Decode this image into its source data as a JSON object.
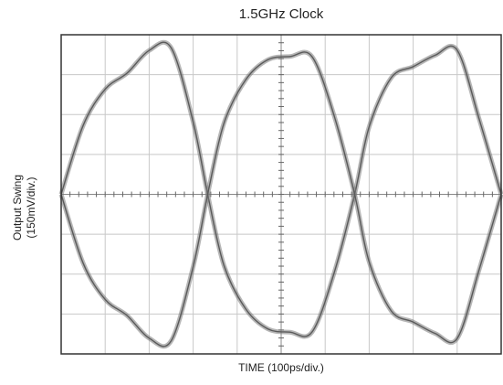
{
  "chart_data": {
    "type": "line",
    "title": "1.5GHz Clock",
    "xlabel": "TIME (100ps/div.)",
    "ylabel_line1": "Output Swing",
    "ylabel_line2": "(150mV/div.)",
    "grid": true,
    "x_divisions": 10,
    "y_divisions": 8,
    "x_unit": "ps",
    "y_unit": "mV",
    "xlim": [
      0,
      1000
    ],
    "ylim": [
      -600,
      600
    ],
    "trace_color": "#7a7a7a",
    "grid_color": "#c8c8c8",
    "series": [
      {
        "x": [
          0,
          50,
          100,
          150,
          200,
          250,
          300,
          333,
          370,
          420,
          470,
          520,
          570,
          620,
          667,
          700,
          750,
          800,
          850,
          900,
          950,
          1000
        ],
        "values": [
          0,
          259,
          395,
          456,
          541,
          551,
          272,
          0,
          -267,
          -432,
          -506,
          -518,
          -518,
          -298,
          0,
          254,
          438,
          480,
          523,
          542,
          283,
          0
        ]
      },
      {
        "x": [
          0,
          50,
          100,
          150,
          200,
          250,
          300,
          333,
          370,
          420,
          470,
          520,
          570,
          620,
          667,
          700,
          750,
          800,
          850,
          900,
          950,
          1000
        ],
        "values": [
          0,
          -259,
          -395,
          -456,
          -541,
          -551,
          -272,
          0,
          267,
          432,
          506,
          518,
          518,
          298,
          0,
          -254,
          -438,
          -480,
          -523,
          -542,
          -283,
          0
        ]
      }
    ]
  }
}
